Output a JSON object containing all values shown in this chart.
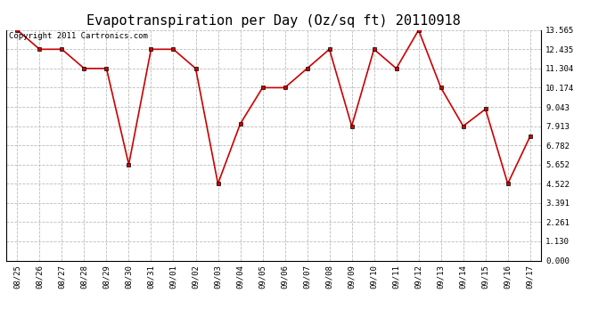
{
  "title": "Evapotranspiration per Day (Oz/sq ft) 20110918",
  "copyright_text": "Copyright 2011 Cartronics.com",
  "labels": [
    "08/25",
    "08/26",
    "08/27",
    "08/28",
    "08/29",
    "08/30",
    "08/31",
    "09/01",
    "09/02",
    "09/03",
    "09/04",
    "09/05",
    "09/06",
    "09/07",
    "09/08",
    "09/09",
    "09/10",
    "09/11",
    "09/12",
    "09/13",
    "09/14",
    "09/15",
    "09/16",
    "09/17"
  ],
  "values": [
    13.565,
    12.435,
    12.435,
    11.304,
    11.304,
    5.652,
    12.435,
    12.435,
    11.304,
    4.522,
    8.043,
    10.174,
    10.174,
    11.304,
    12.435,
    7.913,
    12.435,
    11.304,
    13.565,
    10.174,
    7.913,
    8.913,
    4.522,
    7.3
  ],
  "yticks": [
    0.0,
    1.13,
    2.261,
    3.391,
    4.522,
    5.652,
    6.782,
    7.913,
    9.043,
    10.174,
    11.304,
    12.435,
    13.565
  ],
  "line_color": "#cc0000",
  "marker": "s",
  "marker_size": 2.5,
  "background_color": "#ffffff",
  "grid_color": "#bbbbbb",
  "title_fontsize": 11,
  "tick_fontsize": 6.5,
  "copyright_fontsize": 6.5,
  "ylim_max": 13.565
}
